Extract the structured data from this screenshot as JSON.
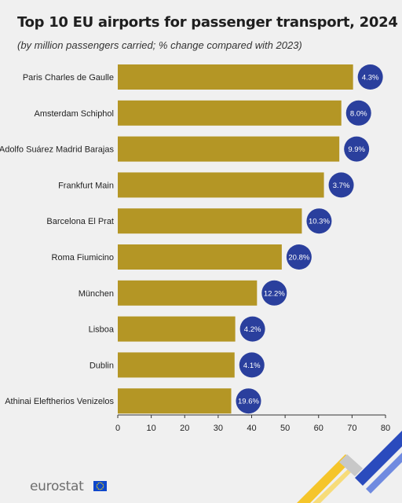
{
  "header": {
    "title": "Top 10 EU airports for passenger transport, 2024",
    "subtitle": "(by million passengers carried; % change compared with 2023)"
  },
  "footer": {
    "logo_text": "eurostat"
  },
  "colors": {
    "bar": "#b49625",
    "badge": "#2a3f9d",
    "badge_text": "#ffffff",
    "background": "#f0f0f0",
    "accent_yellow": "#f5c52a",
    "accent_blue": "#2a4bbd"
  },
  "chart_data": {
    "type": "bar",
    "orientation": "horizontal",
    "categories": [
      "Paris Charles de Gaulle",
      "Amsterdam Schiphol",
      "Adolfo Suárez Madrid Barajas",
      "Frankfurt Main",
      "Barcelona El Prat",
      "Roma Fiumicino",
      "München",
      "Lisboa",
      "Dublin",
      "Athinai Eleftherios Venizelos"
    ],
    "values": [
      70.3,
      66.8,
      66.2,
      61.6,
      55.0,
      49.0,
      41.6,
      35.1,
      34.9,
      33.9
    ],
    "data_labels": [
      "4.3%",
      "8.0%",
      "9.9%",
      "3.7%",
      "10.3%",
      "20.8%",
      "12.2%",
      "4.2%",
      "4.1%",
      "19.6%"
    ],
    "xlim": [
      0,
      80
    ],
    "x_ticks": [
      "0",
      "10",
      "20",
      "30",
      "40",
      "50",
      "60",
      "70",
      "80"
    ],
    "grid": false,
    "legend": "none"
  }
}
